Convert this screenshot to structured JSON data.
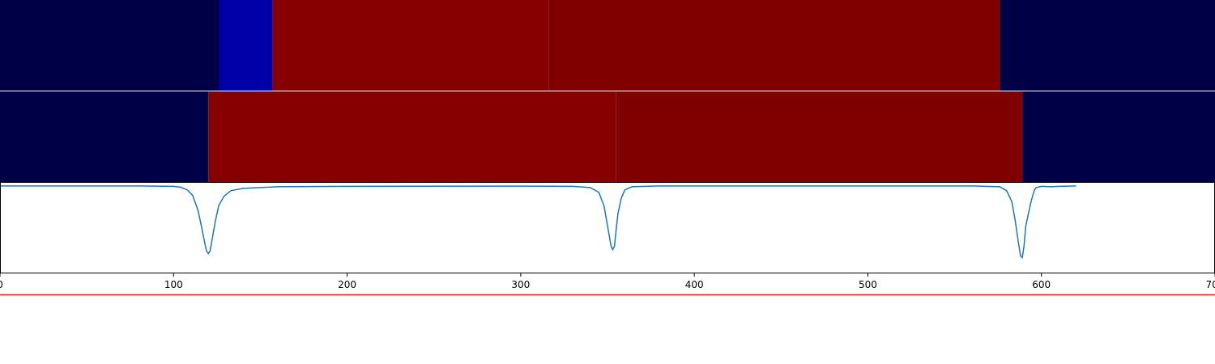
{
  "chart_data": {
    "type": "heatmap",
    "title": "",
    "xlim": [
      0,
      700
    ],
    "x_ticks": [
      0,
      100,
      200,
      300,
      400,
      500,
      600,
      700
    ],
    "x_tick_labels": [
      "0",
      "100",
      "200",
      "300",
      "400",
      "500",
      "600",
      "700"
    ],
    "grid": false,
    "rows": [
      {
        "segments": [
          {
            "x0": 0,
            "x1": 126,
            "color": "#000046"
          },
          {
            "x0": 126,
            "x1": 157,
            "color": "#0000a8"
          },
          {
            "x0": 157,
            "x1": 316,
            "color": "#860000"
          },
          {
            "x0": 316,
            "x1": 576,
            "color": "#800000"
          },
          {
            "x0": 576,
            "x1": 700,
            "color": "#000046"
          }
        ]
      },
      {
        "segments": [
          {
            "x0": 0,
            "x1": 120,
            "color": "#000046"
          },
          {
            "x0": 120,
            "x1": 355,
            "color": "#860000"
          },
          {
            "x0": 355,
            "x1": 589,
            "color": "#800000"
          },
          {
            "x0": 589,
            "x1": 700,
            "color": "#000046"
          }
        ]
      }
    ],
    "signal": {
      "color": "#1f77b4",
      "ylim": [
        -1.1,
        0.05
      ],
      "points": [
        [
          0,
          0.0
        ],
        [
          80,
          0.0
        ],
        [
          100,
          -0.005
        ],
        [
          104,
          -0.015
        ],
        [
          108,
          -0.05
        ],
        [
          111,
          -0.12
        ],
        [
          114,
          -0.3
        ],
        [
          116,
          -0.5
        ],
        [
          118,
          -0.72
        ],
        [
          119,
          -0.82
        ],
        [
          120,
          -0.85
        ],
        [
          121,
          -0.82
        ],
        [
          122,
          -0.7
        ],
        [
          124,
          -0.45
        ],
        [
          126,
          -0.25
        ],
        [
          129,
          -0.13
        ],
        [
          133,
          -0.06
        ],
        [
          140,
          -0.03
        ],
        [
          160,
          -0.01
        ],
        [
          200,
          -0.005
        ],
        [
          300,
          -0.002
        ],
        [
          330,
          -0.005
        ],
        [
          340,
          -0.02
        ],
        [
          345,
          -0.08
        ],
        [
          348,
          -0.25
        ],
        [
          350,
          -0.5
        ],
        [
          352,
          -0.75
        ],
        [
          353,
          -0.8
        ],
        [
          354,
          -0.76
        ],
        [
          355,
          -0.55
        ],
        [
          356,
          -0.35
        ],
        [
          358,
          -0.15
        ],
        [
          360,
          -0.05
        ],
        [
          364,
          -0.01
        ],
        [
          380,
          0.0
        ],
        [
          560,
          0.0
        ],
        [
          576,
          -0.01
        ],
        [
          580,
          -0.06
        ],
        [
          583,
          -0.2
        ],
        [
          585,
          -0.45
        ],
        [
          587,
          -0.75
        ],
        [
          588,
          -0.88
        ],
        [
          589,
          -0.9
        ],
        [
          590,
          -0.75
        ],
        [
          591,
          -0.5
        ],
        [
          593,
          -0.3
        ],
        [
          594,
          -0.2
        ],
        [
          595,
          -0.12
        ],
        [
          596,
          -0.05
        ],
        [
          597,
          -0.02
        ],
        [
          600,
          -0.005
        ],
        [
          606,
          -0.01
        ],
        [
          610,
          -0.005
        ],
        [
          620,
          0.0
        ]
      ]
    },
    "threshold": {
      "value": -1.37,
      "color": "#ff0000"
    }
  }
}
